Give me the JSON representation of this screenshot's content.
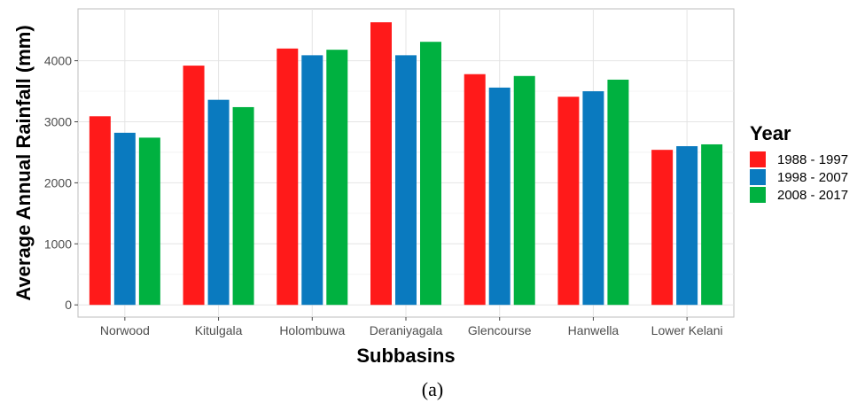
{
  "chart_data": {
    "type": "bar",
    "title": "",
    "xlabel": "Subbasins",
    "ylabel": "Average Annual Rainfall (mm)",
    "categories": [
      "Norwood",
      "Kitulgala",
      "Holombuwa",
      "Deraniyagala",
      "Glencourse",
      "Hanwella",
      "Lower Kelani"
    ],
    "series": [
      {
        "name": "1988 - 1997",
        "color": "#ff1a1a",
        "values": [
          3090,
          3920,
          4200,
          4630,
          3780,
          3410,
          2540
        ]
      },
      {
        "name": "1998 - 2007",
        "color": "#0a7abf",
        "values": [
          2820,
          3360,
          4090,
          4090,
          3560,
          3500,
          2600
        ]
      },
      {
        "name": "2008 - 2017",
        "color": "#00b140",
        "values": [
          2740,
          3240,
          4180,
          4310,
          3750,
          3690,
          2630
        ]
      }
    ],
    "ylim": [
      -200,
      4850
    ],
    "yticks": [
      0,
      1000,
      2000,
      3000,
      4000
    ],
    "grid": true,
    "legend": {
      "title": "Year",
      "placement": "right"
    }
  },
  "panel_label": "(a)"
}
